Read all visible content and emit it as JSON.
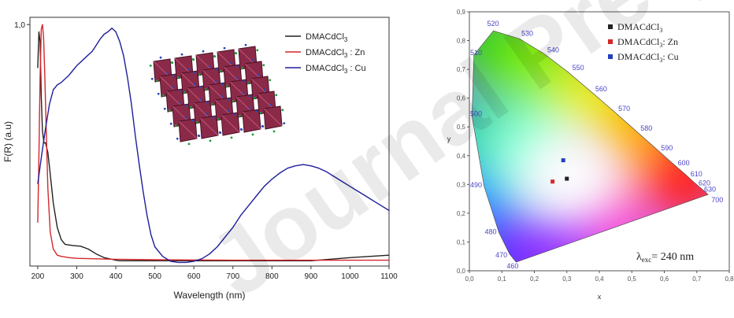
{
  "watermark": "Journal Pre-proof",
  "charts": [
    {
      "type": "line",
      "title": "",
      "xlabel": "Wavelength (nm)",
      "ylabel": "F(R) (a.u)",
      "xlim": [
        180,
        1100
      ],
      "ylim": [
        0,
        1.03
      ],
      "x_ticks": [
        200,
        300,
        400,
        500,
        600,
        700,
        800,
        900,
        1000,
        1100
      ],
      "y_ticks": [
        {
          "value": 1.0,
          "label": "1,0"
        }
      ],
      "grid": false,
      "legend_position": "top-right",
      "inset": "crystal-structure-image",
      "series": [
        {
          "name": "DMACdCl3",
          "name_sub": "3",
          "color": "#222222",
          "x": [
            200,
            203,
            206,
            209,
            212,
            216,
            220,
            226,
            232,
            240,
            250,
            260,
            270,
            290,
            310,
            330,
            350,
            370,
            390,
            400,
            410,
            430,
            500,
            600,
            700,
            800,
            900,
            1000,
            1100
          ],
          "y": [
            0.82,
            0.97,
            0.93,
            0.7,
            0.56,
            0.51,
            0.51,
            0.47,
            0.38,
            0.26,
            0.16,
            0.11,
            0.09,
            0.085,
            0.082,
            0.07,
            0.05,
            0.035,
            0.028,
            0.024,
            0.022,
            0.022,
            0.022,
            0.022,
            0.022,
            0.022,
            0.022,
            0.035,
            0.045
          ]
        },
        {
          "name": "DMACdCl3 : Zn",
          "name_sub": "3",
          "name_suffix": " : Zn",
          "color": "#d6262b",
          "x": [
            200,
            203,
            206,
            209,
            212,
            215,
            218,
            222,
            226,
            232,
            240,
            250,
            260,
            280,
            300,
            350,
            400,
            500,
            600,
            700,
            800,
            900,
            1000,
            1100
          ],
          "y": [
            0.18,
            0.45,
            0.78,
            0.98,
            1.0,
            0.95,
            0.8,
            0.55,
            0.32,
            0.14,
            0.07,
            0.045,
            0.04,
            0.035,
            0.032,
            0.03,
            0.028,
            0.026,
            0.025,
            0.024,
            0.024,
            0.024,
            0.024,
            0.024
          ]
        },
        {
          "name": "DMACdCl3 : Cu",
          "name_sub": "3",
          "name_suffix": " : Cu",
          "color": "#1e1e9c",
          "x": [
            200,
            210,
            220,
            230,
            240,
            250,
            260,
            270,
            280,
            290,
            300,
            320,
            340,
            360,
            370,
            380,
            390,
            400,
            410,
            420,
            430,
            440,
            450,
            460,
            470,
            480,
            490,
            500,
            520,
            540,
            560,
            580,
            600,
            620,
            640,
            660,
            680,
            700,
            720,
            740,
            760,
            780,
            800,
            820,
            840,
            860,
            880,
            900,
            920,
            940,
            960,
            980,
            1000,
            1020,
            1040,
            1060,
            1080,
            1100
          ],
          "y": [
            0.34,
            0.46,
            0.57,
            0.67,
            0.73,
            0.75,
            0.76,
            0.775,
            0.79,
            0.81,
            0.83,
            0.86,
            0.89,
            0.94,
            0.96,
            0.97,
            0.985,
            0.97,
            0.93,
            0.87,
            0.78,
            0.67,
            0.54,
            0.42,
            0.31,
            0.21,
            0.13,
            0.08,
            0.04,
            0.02,
            0.015,
            0.015,
            0.02,
            0.03,
            0.05,
            0.08,
            0.12,
            0.16,
            0.21,
            0.25,
            0.29,
            0.33,
            0.36,
            0.385,
            0.405,
            0.415,
            0.42,
            0.415,
            0.405,
            0.39,
            0.37,
            0.35,
            0.33,
            0.31,
            0.29,
            0.27,
            0.25,
            0.23
          ]
        }
      ]
    },
    {
      "type": "scatter",
      "title": "",
      "xlabel": "x",
      "ylabel": "y",
      "xlim": [
        0,
        0.8
      ],
      "ylim": [
        0,
        0.9
      ],
      "x_tick_labels": [
        "0,0",
        "0,1",
        "0,2",
        "0,3",
        "0,4",
        "0,5",
        "0,6",
        "0,7",
        "0,8"
      ],
      "y_tick_labels": [
        "0,0",
        "0,1",
        "0,2",
        "0,3",
        "0,4",
        "0,5",
        "0,6",
        "0,7",
        "0,8",
        "0,9"
      ],
      "grid": false,
      "legend_position": "top-right",
      "annotation": "λexc= 240 nm",
      "locus_wavelengths": [
        "460",
        "470",
        "480",
        "490",
        "500",
        "510",
        "520",
        "530",
        "540",
        "550",
        "560",
        "570",
        "580",
        "590",
        "600",
        "610",
        "620",
        "630",
        "700"
      ],
      "locus_xy": [
        [
          0.144,
          0.03
        ],
        [
          0.124,
          0.058
        ],
        [
          0.091,
          0.133
        ],
        [
          0.045,
          0.295
        ],
        [
          0.008,
          0.538
        ],
        [
          0.014,
          0.75
        ],
        [
          0.074,
          0.834
        ],
        [
          0.155,
          0.806
        ],
        [
          0.23,
          0.754
        ],
        [
          0.302,
          0.692
        ],
        [
          0.373,
          0.624
        ],
        [
          0.444,
          0.555
        ],
        [
          0.512,
          0.487
        ],
        [
          0.575,
          0.424
        ],
        [
          0.627,
          0.372
        ],
        [
          0.666,
          0.334
        ],
        [
          0.691,
          0.308
        ],
        [
          0.708,
          0.292
        ],
        [
          0.735,
          0.265
        ]
      ],
      "points": [
        {
          "name": "DMACdCl3",
          "name_sub": "3",
          "x": 0.3,
          "y": 0.32,
          "color": "#222222"
        },
        {
          "name": "DMACdCl3: Zn",
          "name_sub": "3",
          "name_suffix": ": Zn",
          "x": 0.256,
          "y": 0.31,
          "color": "#d62728"
        },
        {
          "name": "DMACdCl3: Cu",
          "name_sub": "3",
          "name_suffix": ": Cu",
          "x": 0.289,
          "y": 0.384,
          "color": "#1f3fbf"
        }
      ]
    }
  ]
}
